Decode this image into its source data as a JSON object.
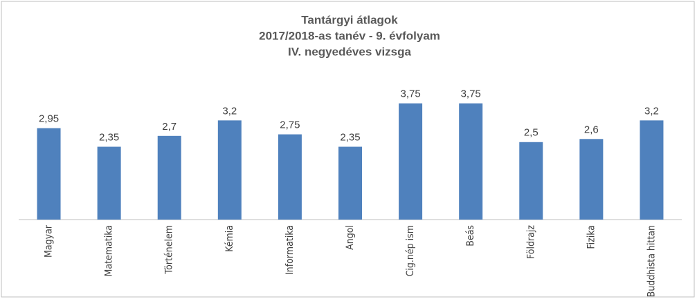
{
  "chart_data": {
    "type": "bar",
    "title": [
      "Tantárgyi átlagok",
      "2017/2018-as tanév - 9. évfolyam",
      "IV. negyedéves vizsga"
    ],
    "categories": [
      "Magyar",
      "Matematika",
      "Történelem",
      "Kémia",
      "Informatika",
      "Angol",
      "Cig.nép ism",
      "Beás",
      "Földrajz",
      "Fizika",
      "Buddhista hittan"
    ],
    "values": [
      2.95,
      2.35,
      2.7,
      3.2,
      2.75,
      2.35,
      3.75,
      3.75,
      2.5,
      2.6,
      3.2
    ],
    "value_labels": [
      "2,95",
      "2,35",
      "2,7",
      "3,2",
      "2,75",
      "2,35",
      "3,75",
      "3,75",
      "2,5",
      "2,6",
      "3,2"
    ],
    "color": "#4f81bd",
    "ylim": [
      0,
      4.5
    ]
  }
}
